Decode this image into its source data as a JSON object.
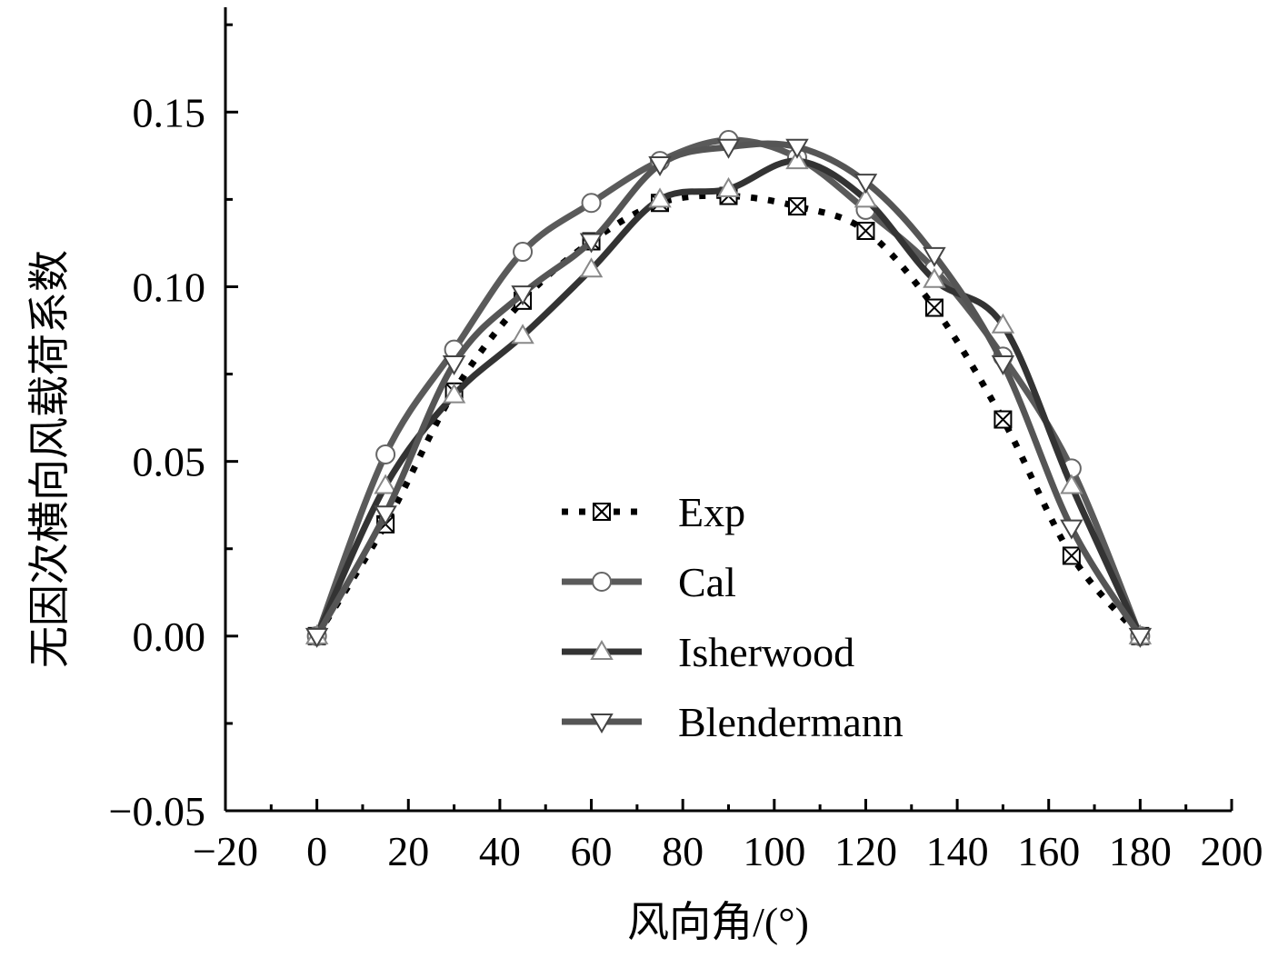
{
  "chart_data": {
    "type": "line",
    "title": "",
    "xlabel": "风向角/(°)",
    "ylabel": "无因次横向风载荷系数",
    "xlim": [
      -20,
      200
    ],
    "ylim": [
      -0.05,
      0.18
    ],
    "xticks": [
      -20,
      0,
      20,
      40,
      60,
      80,
      100,
      120,
      140,
      160,
      180,
      200
    ],
    "xtick_labels": [
      "−20",
      "0",
      "20",
      "40",
      "60",
      "80",
      "100",
      "120",
      "140",
      "160",
      "180",
      "200"
    ],
    "yticks": [
      -0.05,
      0.0,
      0.05,
      0.1,
      0.15
    ],
    "ytick_labels": [
      "−0.05",
      "0.00",
      "0.05",
      "0.10",
      "0.15"
    ],
    "legend_position": "center",
    "series": [
      {
        "name": "Exp",
        "color": "#000000",
        "style": "dotted",
        "marker": "boxed-x",
        "x": [
          0,
          15,
          30,
          45,
          60,
          75,
          90,
          105,
          120,
          135,
          150,
          165,
          180
        ],
        "y": [
          0.0,
          0.032,
          0.07,
          0.096,
          0.113,
          0.124,
          0.126,
          0.123,
          0.116,
          0.094,
          0.062,
          0.023,
          0.0
        ]
      },
      {
        "name": "Cal",
        "color": "#5a5a5a",
        "style": "solid",
        "marker": "circle",
        "x": [
          0,
          15,
          30,
          45,
          60,
          75,
          90,
          105,
          120,
          135,
          150,
          165,
          180
        ],
        "y": [
          0.0,
          0.052,
          0.082,
          0.11,
          0.124,
          0.136,
          0.142,
          0.137,
          0.122,
          0.105,
          0.08,
          0.048,
          0.0
        ]
      },
      {
        "name": "Isherwood",
        "color": "#333333",
        "style": "solid",
        "marker": "triangle-up",
        "x": [
          0,
          15,
          30,
          45,
          60,
          75,
          90,
          105,
          120,
          135,
          150,
          165,
          180
        ],
        "y": [
          0.0,
          0.043,
          0.069,
          0.086,
          0.105,
          0.125,
          0.128,
          0.136,
          0.125,
          0.102,
          0.089,
          0.043,
          0.0
        ]
      },
      {
        "name": "Blendermann",
        "color": "#555555",
        "style": "solid",
        "marker": "triangle-down",
        "x": [
          0,
          15,
          30,
          45,
          60,
          75,
          90,
          105,
          120,
          135,
          150,
          165,
          180
        ],
        "y": [
          0.0,
          0.035,
          0.078,
          0.098,
          0.113,
          0.135,
          0.14,
          0.14,
          0.13,
          0.109,
          0.078,
          0.031,
          0.0
        ]
      }
    ]
  }
}
